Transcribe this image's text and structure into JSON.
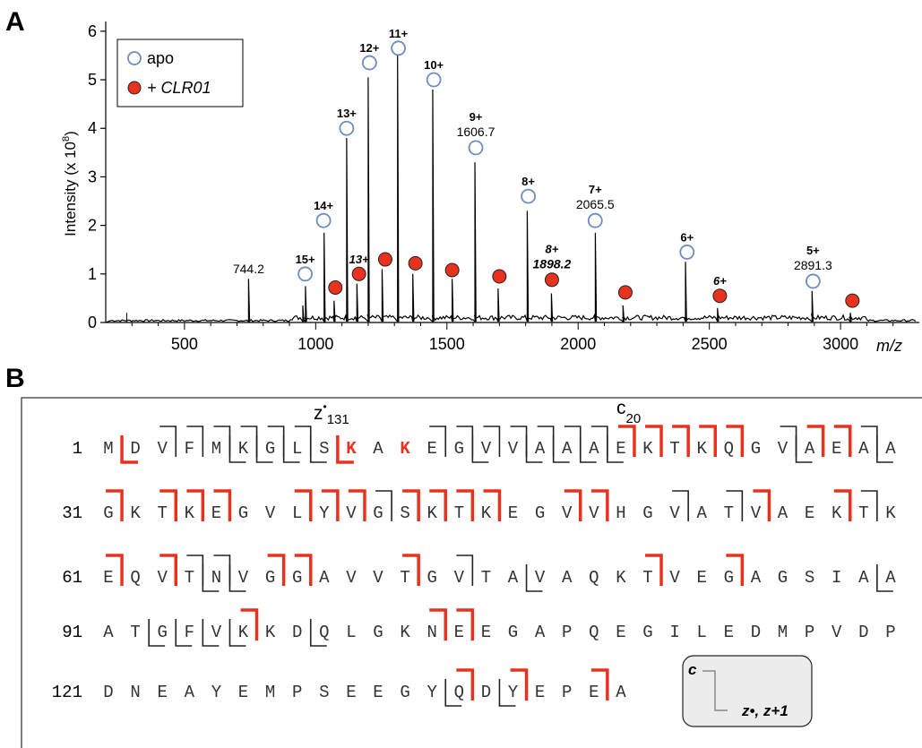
{
  "panels": {
    "a": "A",
    "b": "B"
  },
  "legend": {
    "apo": "apo",
    "clr01": "+ CLR01"
  },
  "chart_data": {
    "type": "line",
    "title": "",
    "xlabel": "m/z",
    "ylabel": "Intensity (x 10",
    "ylabel_exp": "8",
    "ylabel_close": ")",
    "xlim": [
      200,
      3300
    ],
    "ylim": [
      0,
      6.2
    ],
    "x_ticks": [
      500,
      1000,
      1500,
      2000,
      2500,
      3000
    ],
    "y_ticks": [
      0,
      1,
      2,
      3,
      4,
      5,
      6
    ],
    "peaks": [
      {
        "x": 744.2,
        "y": 0.9
      },
      {
        "x": 951,
        "y": 0.35
      },
      {
        "x": 961,
        "y": 0.75
      },
      {
        "x": 1032,
        "y": 1.85
      },
      {
        "x": 1070,
        "y": 0.45
      },
      {
        "x": 1118,
        "y": 3.8
      },
      {
        "x": 1157,
        "y": 0.8
      },
      {
        "x": 1200,
        "y": 5.05
      },
      {
        "x": 1253,
        "y": 1.1
      },
      {
        "x": 1312,
        "y": 5.55
      },
      {
        "x": 1370,
        "y": 1.0
      },
      {
        "x": 1446,
        "y": 4.8
      },
      {
        "x": 1520,
        "y": 0.9
      },
      {
        "x": 1606.7,
        "y": 3.3
      },
      {
        "x": 1695,
        "y": 0.7
      },
      {
        "x": 1806,
        "y": 2.3
      },
      {
        "x": 1898.2,
        "y": 0.6
      },
      {
        "x": 2065.5,
        "y": 1.85
      },
      {
        "x": 2171,
        "y": 0.35
      },
      {
        "x": 2409,
        "y": 1.25
      },
      {
        "x": 2531,
        "y": 0.3
      },
      {
        "x": 2891.3,
        "y": 0.65
      },
      {
        "x": 3037,
        "y": 0.2
      }
    ],
    "series": [
      {
        "name": "apo",
        "points": [
          {
            "x": 960,
            "y": 1.0,
            "label": "15+"
          },
          {
            "x": 1030,
            "y": 2.1,
            "label": "14+"
          },
          {
            "x": 1118,
            "y": 4.0,
            "label": "13+"
          },
          {
            "x": 1205,
            "y": 5.35,
            "label": "12+"
          },
          {
            "x": 1315,
            "y": 5.65,
            "label": "11+"
          },
          {
            "x": 1450,
            "y": 5.0,
            "label": "10+"
          },
          {
            "x": 1610,
            "y": 3.6,
            "label": "9+",
            "mz": "1606.7"
          },
          {
            "x": 1810,
            "y": 2.6,
            "label": "8+"
          },
          {
            "x": 2065,
            "y": 2.1,
            "label": "7+",
            "mz": "2065.5"
          },
          {
            "x": 2415,
            "y": 1.45,
            "label": "6+"
          },
          {
            "x": 2895,
            "y": 0.85,
            "label": "5+",
            "mz": "2891.3"
          }
        ]
      },
      {
        "name": "+ CLR01",
        "points": [
          {
            "x": 1075,
            "y": 0.72
          },
          {
            "x": 1165,
            "y": 1.0,
            "label": "13+"
          },
          {
            "x": 1265,
            "y": 1.3
          },
          {
            "x": 1380,
            "y": 1.22
          },
          {
            "x": 1520,
            "y": 1.08
          },
          {
            "x": 1700,
            "y": 0.95
          },
          {
            "x": 1900,
            "y": 0.88,
            "label": "8+",
            "mz": "1898.2"
          },
          {
            "x": 2180,
            "y": 0.62
          },
          {
            "x": 2540,
            "y": 0.55,
            "label": "6+"
          },
          {
            "x": 3045,
            "y": 0.45
          }
        ]
      }
    ],
    "annotations": [
      {
        "x": 744.2,
        "y": 0.9,
        "text": "744.2"
      }
    ]
  },
  "sequence": {
    "rows": [
      {
        "start": "1",
        "residues": [
          "M",
          "D",
          "V",
          "F",
          "M",
          "K",
          "G",
          "L",
          "S",
          "K",
          "A",
          "K",
          "E",
          "G",
          "V",
          "V",
          "A",
          "A",
          "A",
          "E",
          "K",
          "T",
          "K",
          "Q",
          "G",
          "V",
          "A",
          "E",
          "A",
          "A"
        ]
      },
      {
        "start": "31",
        "residues": [
          "G",
          "K",
          "T",
          "K",
          "E",
          "G",
          "V",
          "L",
          "Y",
          "V",
          "G",
          "S",
          "K",
          "T",
          "K",
          "E",
          "G",
          "V",
          "V",
          "H",
          "G",
          "V",
          "A",
          "T",
          "V",
          "A",
          "E",
          "K",
          "T",
          "K"
        ]
      },
      {
        "start": "61",
        "residues": [
          "E",
          "Q",
          "V",
          "T",
          "N",
          "V",
          "G",
          "G",
          "A",
          "V",
          "V",
          "T",
          "G",
          "V",
          "T",
          "A",
          "V",
          "A",
          "Q",
          "K",
          "T",
          "V",
          "E",
          "G",
          "A",
          "G",
          "S",
          "I",
          "A",
          "A"
        ]
      },
      {
        "start": "91",
        "residues": [
          "A",
          "T",
          "G",
          "F",
          "V",
          "K",
          "K",
          "D",
          "Q",
          "L",
          "G",
          "K",
          "N",
          "E",
          "E",
          "G",
          "A",
          "P",
          "Q",
          "E",
          "G",
          "I",
          "L",
          "E",
          "D",
          "M",
          "P",
          "V",
          "D",
          "P"
        ]
      },
      {
        "start": "121",
        "residues": [
          "D",
          "N",
          "E",
          "A",
          "Y",
          "E",
          "M",
          "P",
          "S",
          "E",
          "E",
          "G",
          "Y",
          "Q",
          "D",
          "Y",
          "E",
          "P",
          "E",
          "A"
        ]
      }
    ],
    "highlight_color": "#e8321e",
    "labels": {
      "z_main": "z",
      "z_dot": "•",
      "z_sub": "131",
      "c_main": "c",
      "c_sub": "20"
    }
  },
  "key": {
    "c": "c",
    "z": "z•, z+1"
  }
}
